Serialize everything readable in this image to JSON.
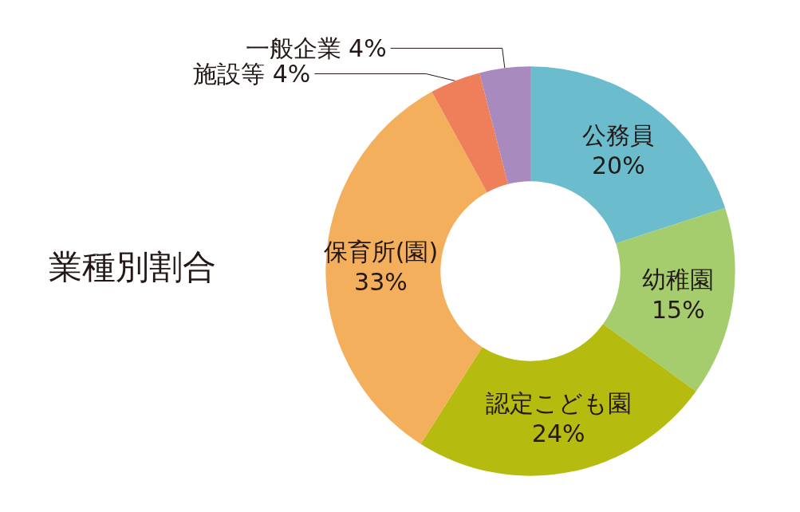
{
  "chart_data": {
    "type": "donut",
    "title": "業種別割合",
    "categories": [
      "公務員",
      "幼稚園",
      "認定こども園",
      "保育所(園)",
      "施設等",
      "一般企業"
    ],
    "values": [
      20,
      15,
      24,
      33,
      4,
      4
    ],
    "value_labels": [
      "20%",
      "15%",
      "24%",
      "33%",
      "4%",
      "4%"
    ],
    "colors": [
      "#6bbccc",
      "#a5cd6e",
      "#b5bb0f",
      "#f4af5c",
      "#ef7f5b",
      "#a98abf"
    ],
    "legend": false
  }
}
